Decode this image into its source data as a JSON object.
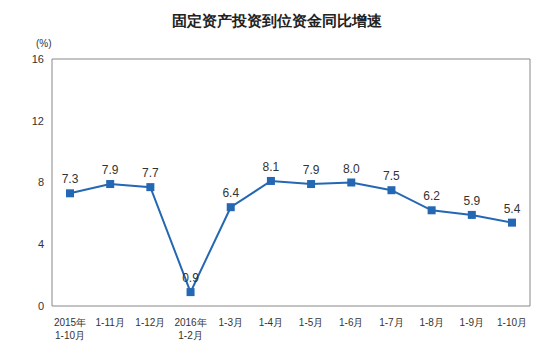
{
  "chart_data": {
    "type": "line",
    "title": "固定资产投资到位资金同比增速",
    "y_label": "(%)",
    "categories": [
      "2015年1-10月",
      "1-11月",
      "1-12月",
      "2016年1-2月",
      "1-3月",
      "1-4月",
      "1-5月",
      "1-6月",
      "1-7月",
      "1-8月",
      "1-9月",
      "1-10月"
    ],
    "values": [
      7.3,
      7.9,
      7.7,
      0.9,
      6.4,
      8.1,
      7.9,
      8.0,
      7.5,
      6.2,
      5.9,
      5.4
    ],
    "value_labels": [
      "7.3",
      "7.9",
      "7.7",
      "0.9",
      "6.4",
      "8.1",
      "7.9",
      "8.0",
      "7.5",
      "6.2",
      "5.9",
      "5.4"
    ],
    "color": "#2467b3",
    "marker": "square",
    "ylim": [
      0,
      16
    ],
    "yticks": [
      0,
      4,
      8,
      12,
      16
    ],
    "grid": false,
    "data_labels": true
  }
}
